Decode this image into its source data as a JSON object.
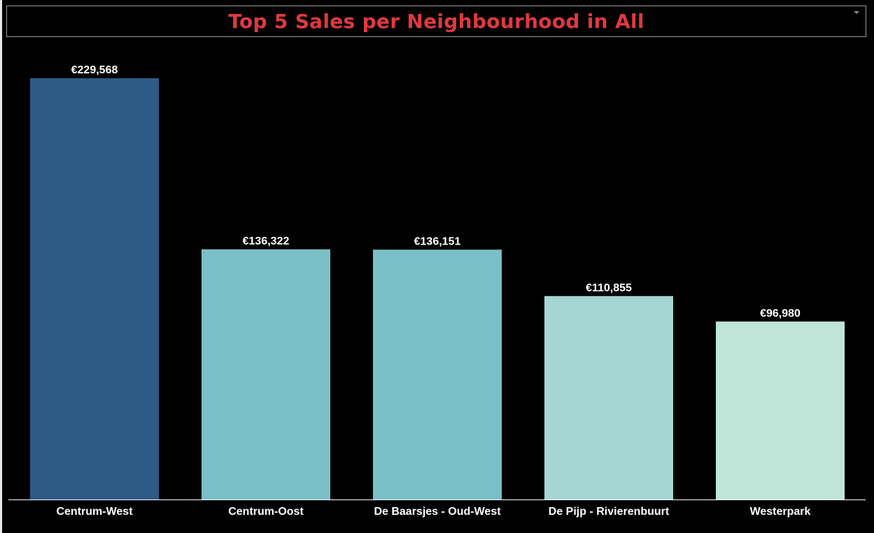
{
  "title": "Top 5 Sales per Neighbourhood in All",
  "icons": {
    "menu": "chevron-down-icon"
  },
  "colors": {
    "background": "#000000",
    "title": "#e0393e",
    "axis": "#ffffff"
  },
  "chart_data": {
    "type": "bar",
    "categories": [
      "Centrum-West",
      "Centrum-Oost",
      "De Baarsjes - Oud-West",
      "De Pijp - Rivierenbuurt",
      "Westerpark"
    ],
    "values": [
      229568,
      136322,
      136151,
      110855,
      96980
    ],
    "value_labels": [
      "€229,568",
      "€136,322",
      "€136,151",
      "€110,855",
      "€96,980"
    ],
    "bar_colors": [
      "#2e5a87",
      "#7abfc8",
      "#7abfc8",
      "#a5d6d2",
      "#bfe5d9"
    ],
    "xlabel": "",
    "ylabel": "",
    "ylim": [
      0,
      229568
    ],
    "grid": false,
    "legend": "none"
  }
}
